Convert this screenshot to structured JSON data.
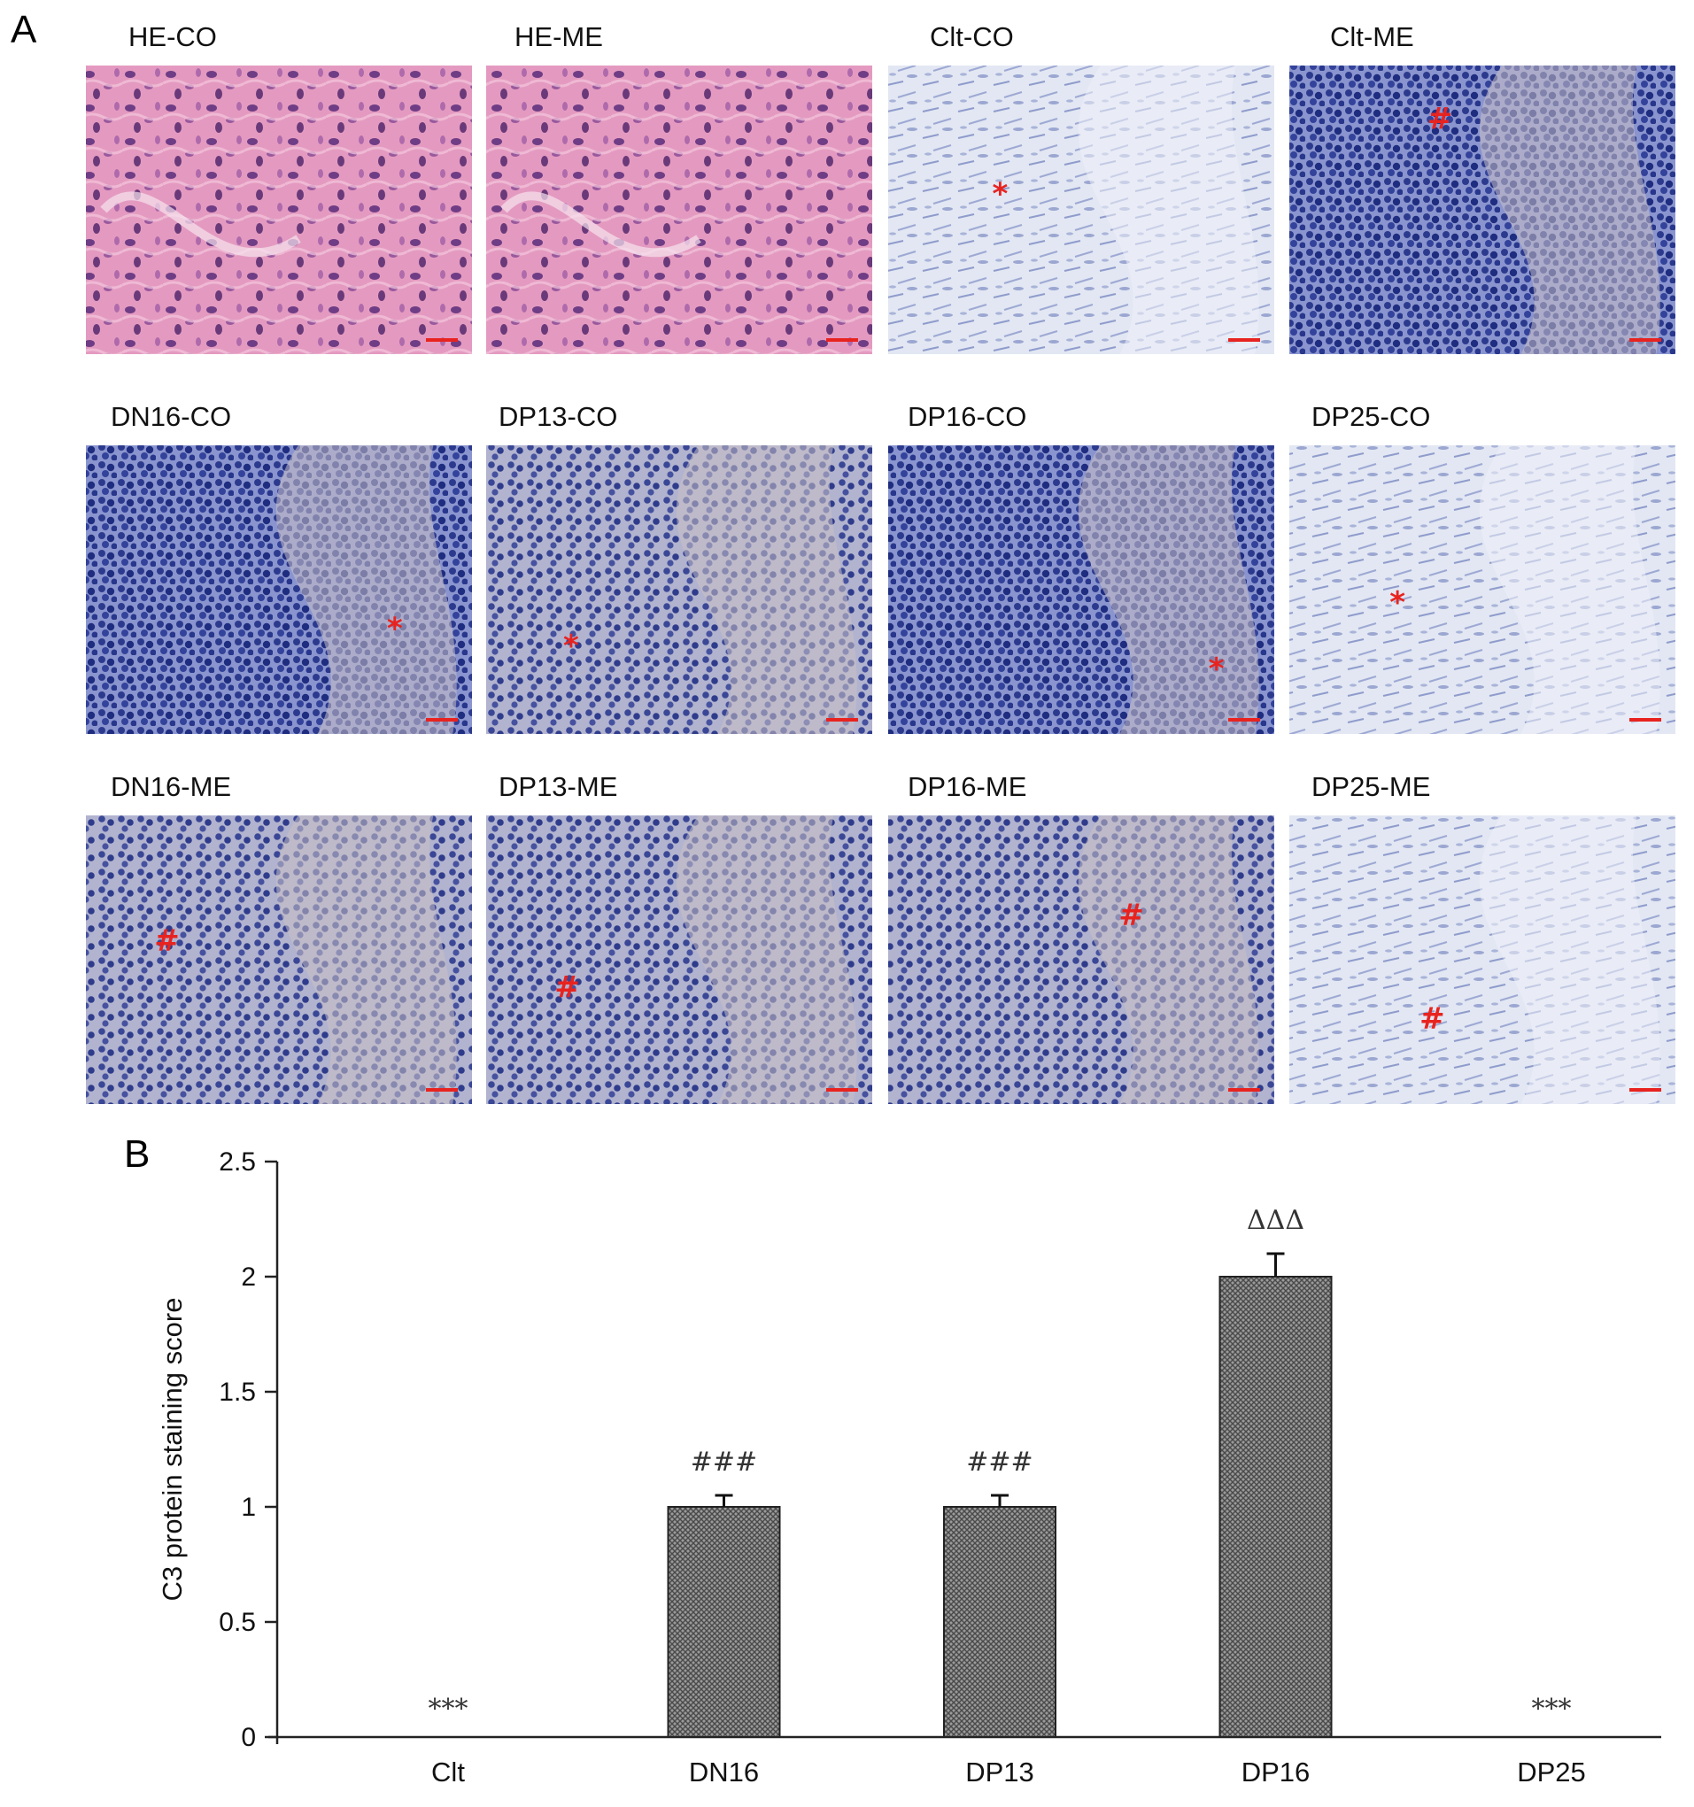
{
  "panels": {
    "a_label": "A",
    "b_label": "B"
  },
  "micrographs": [
    {
      "label": "HE-CO",
      "stain": "he",
      "marker": ""
    },
    {
      "label": "HE-ME",
      "stain": "he",
      "marker": ""
    },
    {
      "label": "Clt-CO",
      "stain": "light",
      "marker": "*"
    },
    {
      "label": "Clt-ME",
      "stain": "dense",
      "marker": "#"
    },
    {
      "label": "DN16-CO",
      "stain": "dense",
      "marker": "*"
    },
    {
      "label": "DP13-CO",
      "stain": "mixed",
      "marker": "*"
    },
    {
      "label": "DP16-CO",
      "stain": "dense",
      "marker": "*"
    },
    {
      "label": "DP25-CO",
      "stain": "light",
      "marker": "*"
    },
    {
      "label": "DN16-ME",
      "stain": "mixed",
      "marker": "#"
    },
    {
      "label": "DP13-ME",
      "stain": "mixed",
      "marker": "#"
    },
    {
      "label": "DP16-ME",
      "stain": "mixed",
      "marker": "#"
    },
    {
      "label": "DP25-ME",
      "stain": "light",
      "marker": "#"
    }
  ],
  "chart_data": {
    "type": "bar",
    "title": "",
    "xlabel": "",
    "ylabel": "C3 protein staining score",
    "ylim": [
      0,
      2.5
    ],
    "yticks": [
      0,
      0.5,
      1,
      1.5,
      2,
      2.5
    ],
    "ytick_labels": [
      "0",
      "0.5",
      "1",
      "1.5",
      "2",
      "2.5"
    ],
    "categories": [
      "Clt",
      "DN16",
      "DP13",
      "DP16",
      "DP25"
    ],
    "values": [
      0,
      1,
      1,
      2,
      0
    ],
    "errors": [
      0,
      0.05,
      0.05,
      0.1,
      0
    ],
    "annotations": [
      "***",
      "###",
      "###",
      "ΔΔΔ",
      "***"
    ],
    "grid": false,
    "legend": "none"
  },
  "colors": {
    "scale_bar": "#e8231f",
    "marker": "#e8231f",
    "bar_fill": "#8a8a8a",
    "he_background": "#e79cc0",
    "ihc_background": "#dfe6f3"
  }
}
